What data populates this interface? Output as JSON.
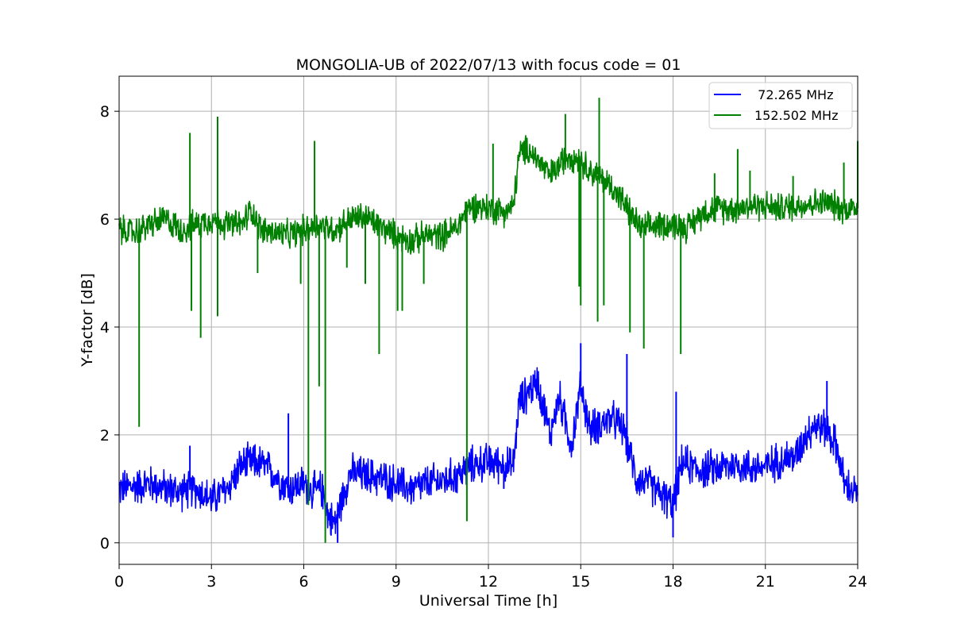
{
  "chart_data": {
    "type": "line",
    "title": "MONGOLIA-UB of 2022/07/13 with focus code = 01",
    "xlabel": "Universal Time [h]",
    "ylabel": "Y-factor [dB]",
    "xlim": [
      0,
      24
    ],
    "ylim": [
      -0.4,
      8.65
    ],
    "xticks": [
      0,
      3,
      6,
      9,
      12,
      15,
      18,
      21,
      24
    ],
    "yticks": [
      0,
      2,
      4,
      6,
      8
    ],
    "grid": true,
    "legend_position": "top-right",
    "series": [
      {
        "name": "  72.265 MHz",
        "color": "#0000ff",
        "x": [
          0,
          0.5,
          1.0,
          1.5,
          2.0,
          2.5,
          3.0,
          3.5,
          4.0,
          4.5,
          5.0,
          5.5,
          6.0,
          6.3,
          6.6,
          6.8,
          7.0,
          7.5,
          8.0,
          8.5,
          9.0,
          9.5,
          10.0,
          10.5,
          11.0,
          11.5,
          12.0,
          12.5,
          12.8,
          13.0,
          13.3,
          13.6,
          14.0,
          14.3,
          14.7,
          15.0,
          15.3,
          15.6,
          16.0,
          16.4,
          16.8,
          17.2,
          17.6,
          18.0,
          18.3,
          18.6,
          19.0,
          19.5,
          20.0,
          20.5,
          21.0,
          21.5,
          22.0,
          22.3,
          22.6,
          23.0,
          23.3,
          23.6,
          24.0
        ],
        "y": [
          1.0,
          1.05,
          1.1,
          1.0,
          0.95,
          1.0,
          0.8,
          1.0,
          1.45,
          1.5,
          1.3,
          1.0,
          1.1,
          0.95,
          1.0,
          0.5,
          0.35,
          1.3,
          1.25,
          1.2,
          1.1,
          1.0,
          1.1,
          1.15,
          1.25,
          1.45,
          1.5,
          1.45,
          1.4,
          2.6,
          2.8,
          3.0,
          2.0,
          2.7,
          1.8,
          2.9,
          2.1,
          2.2,
          2.3,
          2.1,
          1.2,
          1.1,
          0.9,
          0.7,
          1.5,
          1.4,
          1.35,
          1.4,
          1.45,
          1.4,
          1.4,
          1.55,
          1.6,
          2.0,
          2.2,
          2.1,
          1.8,
          1.05,
          0.9
        ],
        "spikes": [
          {
            "x": 2.3,
            "y": 1.8
          },
          {
            "x": 5.5,
            "y": 2.4
          },
          {
            "x": 12.5,
            "y": 1.0
          },
          {
            "x": 15.0,
            "y": 3.7
          },
          {
            "x": 16.5,
            "y": 3.5
          },
          {
            "x": 18.1,
            "y": 2.8
          },
          {
            "x": 23.0,
            "y": 3.0
          },
          {
            "x": 7.1,
            "y": 0.0
          },
          {
            "x": 18.0,
            "y": 0.1
          }
        ]
      },
      {
        "name": "152.502 MHz",
        "color": "#008000",
        "x": [
          0,
          0.5,
          1.0,
          1.5,
          2.0,
          2.5,
          3.0,
          3.5,
          4.0,
          4.3,
          4.6,
          5.0,
          5.5,
          6.0,
          6.5,
          7.0,
          7.5,
          8.0,
          8.5,
          9.0,
          9.5,
          10.0,
          10.5,
          11.0,
          11.3,
          11.6,
          12.0,
          12.5,
          12.8,
          13.0,
          13.3,
          13.6,
          14.0,
          14.3,
          14.6,
          15.0,
          15.3,
          15.6,
          16.0,
          16.3,
          16.6,
          17.0,
          17.5,
          18.0,
          18.5,
          19.0,
          19.5,
          20.0,
          20.5,
          21.0,
          21.5,
          22.0,
          22.5,
          23.0,
          23.5,
          24.0
        ],
        "y": [
          5.8,
          5.75,
          5.9,
          6.0,
          5.8,
          5.9,
          6.0,
          5.9,
          5.9,
          6.2,
          5.8,
          5.75,
          5.7,
          5.8,
          5.9,
          5.8,
          6.0,
          6.05,
          5.85,
          5.7,
          5.6,
          5.7,
          5.7,
          5.85,
          6.2,
          6.25,
          6.2,
          6.15,
          6.2,
          7.2,
          7.3,
          7.1,
          6.8,
          7.0,
          7.2,
          7.1,
          6.9,
          6.8,
          6.6,
          6.4,
          6.1,
          5.8,
          5.9,
          5.9,
          5.85,
          6.15,
          6.2,
          6.2,
          6.25,
          6.25,
          6.2,
          6.25,
          6.3,
          6.3,
          6.2,
          6.2
        ],
        "spikes": [
          {
            "x": 0.65,
            "y": 2.15
          },
          {
            "x": 2.3,
            "y": 7.6
          },
          {
            "x": 2.35,
            "y": 4.3
          },
          {
            "x": 2.65,
            "y": 3.8
          },
          {
            "x": 3.2,
            "y": 7.9
          },
          {
            "x": 3.2,
            "y": 4.2
          },
          {
            "x": 4.5,
            "y": 5.0
          },
          {
            "x": 5.9,
            "y": 4.8
          },
          {
            "x": 6.15,
            "y": 0.7
          },
          {
            "x": 6.35,
            "y": 7.45
          },
          {
            "x": 6.5,
            "y": 2.9
          },
          {
            "x": 6.7,
            "y": 0.0
          },
          {
            "x": 7.4,
            "y": 5.1
          },
          {
            "x": 8.0,
            "y": 4.8
          },
          {
            "x": 8.45,
            "y": 3.5
          },
          {
            "x": 9.05,
            "y": 4.3
          },
          {
            "x": 9.2,
            "y": 4.3
          },
          {
            "x": 9.9,
            "y": 4.8
          },
          {
            "x": 11.3,
            "y": 0.4
          },
          {
            "x": 12.15,
            "y": 7.4
          },
          {
            "x": 14.5,
            "y": 7.95
          },
          {
            "x": 14.95,
            "y": 4.75
          },
          {
            "x": 15.0,
            "y": 4.4
          },
          {
            "x": 15.55,
            "y": 4.1
          },
          {
            "x": 15.6,
            "y": 8.25
          },
          {
            "x": 15.75,
            "y": 4.4
          },
          {
            "x": 16.6,
            "y": 3.9
          },
          {
            "x": 17.05,
            "y": 3.6
          },
          {
            "x": 18.25,
            "y": 3.5
          },
          {
            "x": 19.35,
            "y": 6.85
          },
          {
            "x": 20.1,
            "y": 7.3
          },
          {
            "x": 20.5,
            "y": 6.9
          },
          {
            "x": 21.9,
            "y": 6.8
          },
          {
            "x": 23.55,
            "y": 7.05
          },
          {
            "x": 24.0,
            "y": 7.45
          }
        ]
      }
    ]
  }
}
